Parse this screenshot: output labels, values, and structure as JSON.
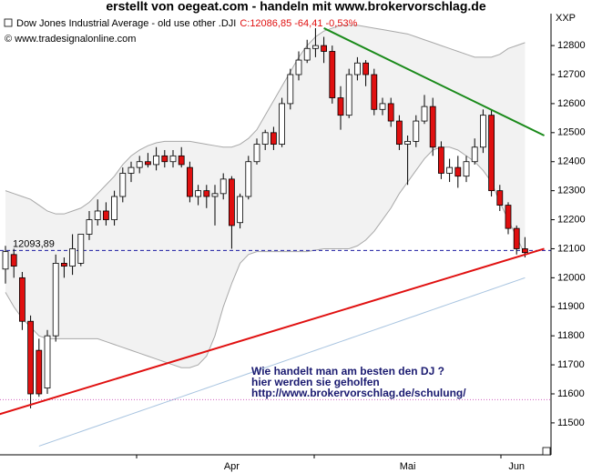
{
  "chart_data": {
    "type": "candlestick",
    "title": "erstellt von oegeat.com  - handeln mit  www.brokervorschlag.de",
    "instrument": "Dow Jones Industrial Average - old use other .DJI",
    "quote": "C:12086,85 -64,41 -0,53%",
    "source": "© www.tradesignalonline.com",
    "corner_label": "XXP",
    "annotation": [
      "Wie handelt man am besten  den DJ ?",
      "hier werden sie geholfen",
      "http://www.brokervorschlag.de/schulung/"
    ],
    "categories": [
      null,
      null,
      null,
      null,
      null,
      null,
      null,
      null,
      null,
      null,
      null,
      null,
      null,
      null,
      null,
      null,
      null,
      null,
      null,
      null,
      null,
      null,
      null,
      null,
      null,
      null,
      null,
      "Apr",
      null,
      null,
      null,
      null,
      null,
      null,
      null,
      null,
      null,
      null,
      null,
      null,
      null,
      null,
      null,
      null,
      null,
      null,
      null,
      null,
      "Mai",
      null,
      null,
      null,
      null,
      null,
      null,
      null,
      null,
      null,
      null,
      null,
      null,
      "Jun",
      null
    ],
    "open": [
      12030,
      12080,
      12000,
      11850,
      11750,
      11620,
      11800,
      12050,
      12040,
      12050,
      12150,
      12200,
      12230,
      12200,
      12280,
      12360,
      12380,
      12400,
      12390,
      12420,
      12400,
      12420,
      12380,
      12280,
      12300,
      12280,
      12290,
      12340,
      12190,
      12280,
      12400,
      12460,
      12500,
      12460,
      12600,
      12700,
      12750,
      12790,
      12800,
      12780,
      12620,
      12560,
      12700,
      12740,
      12700,
      12580,
      12600,
      12540,
      12460,
      12470,
      12540,
      12590,
      12450,
      12360,
      12380,
      12350,
      12400,
      12450,
      12560,
      12300,
      12250,
      12170,
      12100
    ],
    "high": [
      12110,
      12100,
      12020,
      11870,
      11790,
      11820,
      12080,
      12070,
      12150,
      12150,
      12230,
      12270,
      12260,
      12300,
      12380,
      12400,
      12420,
      12430,
      12450,
      12440,
      12440,
      12450,
      12400,
      12320,
      12320,
      12320,
      12360,
      12350,
      12290,
      12420,
      12480,
      12510,
      12520,
      12620,
      12720,
      12780,
      12820,
      12860,
      12830,
      12800,
      12660,
      12720,
      12760,
      12750,
      12720,
      12620,
      12620,
      12560,
      12490,
      12560,
      12630,
      12620,
      12470,
      12410,
      12420,
      12420,
      12480,
      12580,
      12580,
      12320,
      12260,
      12180,
      12140
    ],
    "low": [
      11980,
      12000,
      11820,
      11550,
      11590,
      11600,
      11780,
      12000,
      12010,
      12040,
      12130,
      12180,
      12180,
      12180,
      12260,
      12330,
      12360,
      12380,
      12370,
      12380,
      12380,
      12380,
      12260,
      12250,
      12240,
      12180,
      12270,
      12100,
      12170,
      12270,
      12390,
      12440,
      12440,
      12450,
      12580,
      12680,
      12740,
      12760,
      12740,
      12600,
      12510,
      12550,
      12680,
      12660,
      12560,
      12560,
      12520,
      12440,
      12320,
      12450,
      12530,
      12420,
      12340,
      12330,
      12310,
      12330,
      12390,
      12430,
      12280,
      12230,
      12150,
      12080,
      12070
    ],
    "close": [
      12090,
      12040,
      11850,
      11600,
      11600,
      11800,
      12050,
      12040,
      12100,
      12150,
      12200,
      12230,
      12200,
      12280,
      12360,
      12380,
      12400,
      12390,
      12420,
      12400,
      12420,
      12390,
      12280,
      12300,
      12280,
      12290,
      12340,
      12180,
      12280,
      12400,
      12460,
      12500,
      12460,
      12600,
      12700,
      12750,
      12790,
      12800,
      12780,
      12620,
      12560,
      12700,
      12740,
      12700,
      12580,
      12600,
      12540,
      12460,
      12470,
      12540,
      12590,
      12450,
      12360,
      12380,
      12350,
      12400,
      12450,
      12560,
      12300,
      12250,
      12170,
      12100,
      12086.85
    ],
    "up_color": "#ffffff",
    "down_color": "#e01010",
    "upper_band": [
      12300,
      12290,
      12280,
      12270,
      12250,
      12230,
      12220,
      12220,
      12230,
      12240,
      12260,
      12290,
      12320,
      12350,
      12390,
      12420,
      12440,
      12455,
      12465,
      12470,
      12470,
      12470,
      12470,
      12465,
      12460,
      12455,
      12450,
      12450,
      12460,
      12480,
      12510,
      12560,
      12610,
      12660,
      12710,
      12760,
      12800,
      12830,
      12850,
      12860,
      12870,
      12870,
      12870,
      12865,
      12860,
      12855,
      12850,
      12845,
      12840,
      12830,
      12820,
      12810,
      12800,
      12790,
      12780,
      12770,
      12760,
      12760,
      12760,
      12770,
      12790,
      12800,
      12810
    ],
    "lower_band": [
      11950,
      11900,
      11860,
      11830,
      11800,
      11790,
      11790,
      11790,
      11790,
      11790,
      11790,
      11790,
      11780,
      11770,
      11760,
      11750,
      11740,
      11730,
      11720,
      11710,
      11700,
      11690,
      11690,
      11700,
      11730,
      11800,
      11900,
      11980,
      12050,
      12080,
      12090,
      12090,
      12090,
      12090,
      12090,
      12090,
      12090,
      12095,
      12100,
      12100,
      12100,
      12100,
      12110,
      12130,
      12160,
      12200,
      12240,
      12290,
      12330,
      12370,
      12410,
      12440,
      12450,
      12450,
      12440,
      12420,
      12400,
      12370,
      12330,
      12260,
      12200,
      12140,
      12080
    ],
    "band_color": "#a8a8a8",
    "band_fill": "#f2f2f2",
    "moving_average": [
      null,
      null,
      null,
      null,
      11420,
      11430,
      11440,
      11450,
      11460,
      11470,
      11480,
      11490,
      11500,
      11510,
      11520,
      11530,
      11540,
      11550,
      11560,
      11570,
      11580,
      11590,
      11600,
      11610,
      11620,
      11630,
      11640,
      11650,
      11660,
      11670,
      11680,
      11690,
      11700,
      11710,
      11720,
      11730,
      11740,
      11750,
      11760,
      11770,
      11780,
      11790,
      11800,
      11810,
      11820,
      11830,
      11840,
      11850,
      11860,
      11870,
      11880,
      11890,
      11900,
      11910,
      11920,
      11930,
      11940,
      11950,
      11960,
      11970,
      11980,
      11990,
      12000
    ],
    "ma_color": "#a8c4e0",
    "trendlines": [
      {
        "color": "#1a8a1a",
        "start_index": 38,
        "start_value": 12860,
        "end_index": 64.3,
        "end_value": 12490
      },
      {
        "color": "#e01010",
        "start_index": -0.7,
        "start_value": 11530,
        "end_index": 64.3,
        "end_value": 12100
      }
    ],
    "level": {
      "value": 12093.89,
      "label": "12093,89",
      "color": "#1a1aa0"
    },
    "support": {
      "value": 11580,
      "color": "#d060c0"
    },
    "ylim": [
      11390,
      12910
    ],
    "yticks": [
      11500,
      11600,
      11700,
      11800,
      11900,
      12000,
      12100,
      12200,
      12300,
      12400,
      12500,
      12600,
      12700,
      12800
    ]
  }
}
